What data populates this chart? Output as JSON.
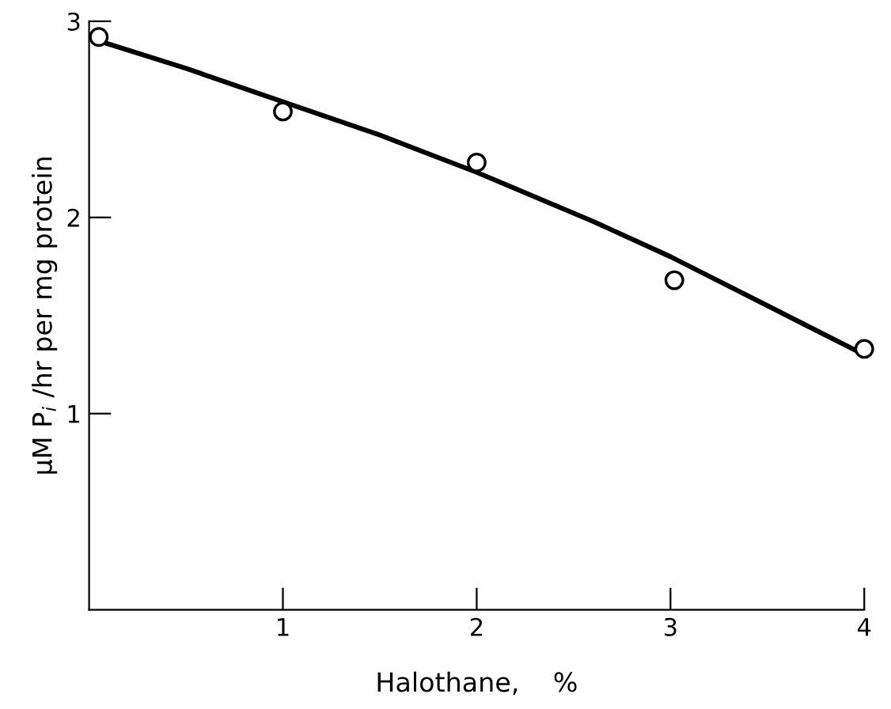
{
  "chart_data": {
    "type": "scatter",
    "xlabel": "Halothane,    %",
    "ylabel": "μM P$_{i}$ /hr per mg protein",
    "xlim": [
      0,
      4
    ],
    "ylim": [
      0,
      3
    ],
    "xticks": [
      1,
      2,
      3,
      4
    ],
    "yticks": [
      1,
      2,
      3
    ],
    "grid": false,
    "legend": false,
    "series": [
      {
        "marker": "circle",
        "color": "#000000",
        "x": [
          0.05,
          1.0,
          2.0,
          3.02,
          4.0
        ],
        "values": [
          2.92,
          2.54,
          2.28,
          1.68,
          1.33
        ]
      },
      {
        "type": "line",
        "marker": "none",
        "line_style": "solid",
        "color": "#000000",
        "x": [
          0.05,
          0.5,
          1.0,
          1.5,
          2.0,
          2.6,
          3.0,
          3.5,
          4.0
        ],
        "values": [
          2.9,
          2.76,
          2.59,
          2.42,
          2.23,
          1.98,
          1.8,
          1.55,
          1.3
        ]
      }
    ]
  }
}
